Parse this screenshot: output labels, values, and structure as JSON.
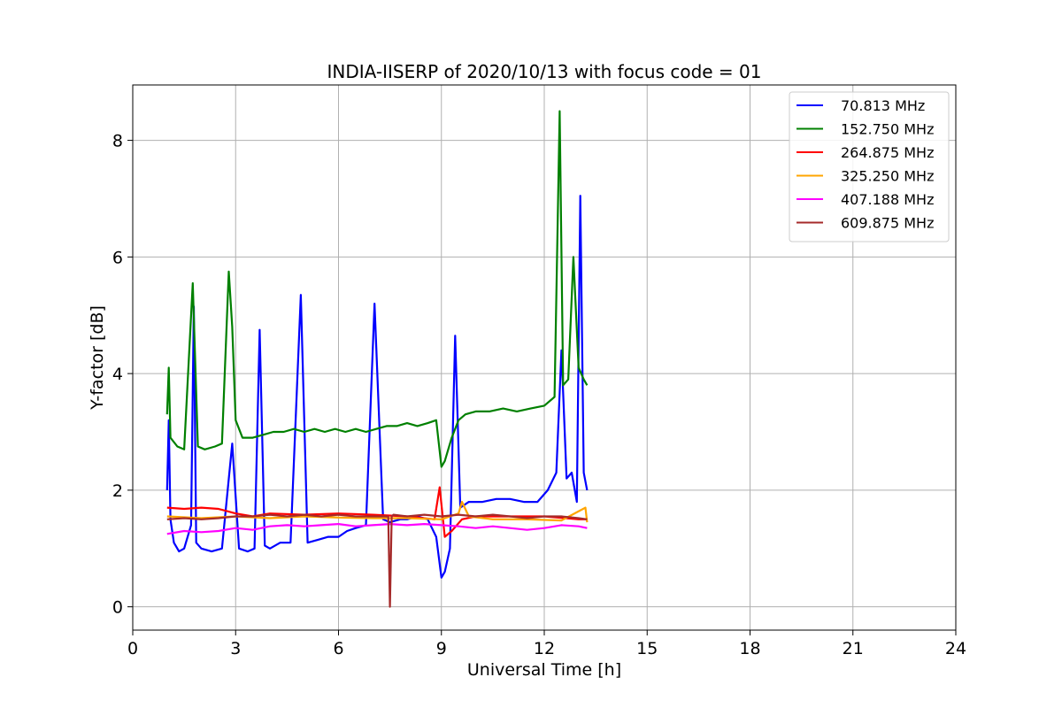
{
  "chart_data": {
    "type": "line",
    "title": "INDIA-IISERP of 2020/10/13 with focus code = 01",
    "xlabel": "Universal Time [h]",
    "ylabel": "Y-factor [dB]",
    "xlim": [
      0,
      24
    ],
    "ylim": [
      -0.4,
      8.95
    ],
    "xticks": [
      0,
      3,
      6,
      9,
      12,
      15,
      18,
      21,
      24
    ],
    "yticks": [
      0,
      2,
      4,
      6,
      8
    ],
    "grid": true,
    "legend_position": "top-right",
    "series": [
      {
        "name": " 70.813 MHz",
        "color": "#0000ff",
        "x": [
          1.0,
          1.05,
          1.1,
          1.2,
          1.35,
          1.5,
          1.7,
          1.78,
          1.85,
          2.0,
          2.3,
          2.6,
          2.9,
          3.1,
          3.35,
          3.55,
          3.7,
          3.85,
          4.0,
          4.3,
          4.6,
          4.9,
          5.1,
          5.4,
          5.7,
          6.0,
          6.25,
          6.5,
          6.8,
          7.05,
          7.3,
          7.5,
          7.8,
          8.0,
          8.3,
          8.6,
          8.85,
          9.0,
          9.1,
          9.25,
          9.4,
          9.55,
          9.8,
          10.2,
          10.6,
          11.0,
          11.4,
          11.8,
          12.1,
          12.35,
          12.5,
          12.65,
          12.8,
          12.95,
          13.05,
          13.15,
          13.25
        ],
        "y": [
          2.0,
          3.2,
          1.5,
          1.1,
          0.95,
          1.0,
          1.4,
          5.15,
          1.1,
          1.0,
          0.95,
          1.0,
          2.8,
          1.0,
          0.95,
          1.0,
          4.75,
          1.05,
          1.0,
          1.1,
          1.1,
          5.35,
          1.1,
          1.15,
          1.2,
          1.2,
          1.3,
          1.35,
          1.4,
          5.2,
          1.5,
          1.45,
          1.5,
          1.5,
          1.55,
          1.5,
          1.2,
          0.5,
          0.6,
          1.0,
          4.65,
          1.7,
          1.8,
          1.8,
          1.85,
          1.85,
          1.8,
          1.8,
          2.0,
          2.3,
          4.4,
          2.2,
          2.3,
          1.8,
          7.05,
          2.3,
          2.0
        ]
      },
      {
        "name": "152.750 MHz",
        "color": "#008000",
        "x": [
          1.0,
          1.05,
          1.1,
          1.3,
          1.5,
          1.75,
          1.9,
          2.1,
          2.4,
          2.6,
          2.8,
          2.9,
          3.0,
          3.2,
          3.5,
          3.8,
          4.1,
          4.4,
          4.7,
          5.0,
          5.3,
          5.6,
          5.9,
          6.2,
          6.5,
          6.8,
          7.1,
          7.4,
          7.7,
          8.0,
          8.3,
          8.6,
          8.85,
          9.0,
          9.1,
          9.3,
          9.5,
          9.7,
          10.0,
          10.4,
          10.8,
          11.2,
          11.6,
          12.0,
          12.3,
          12.45,
          12.55,
          12.7,
          12.85,
          13.0,
          13.15,
          13.25
        ],
        "y": [
          3.3,
          4.1,
          2.9,
          2.75,
          2.7,
          5.55,
          2.75,
          2.7,
          2.75,
          2.8,
          5.75,
          4.8,
          3.2,
          2.9,
          2.9,
          2.95,
          3.0,
          3.0,
          3.05,
          3.0,
          3.05,
          3.0,
          3.05,
          3.0,
          3.05,
          3.0,
          3.05,
          3.1,
          3.1,
          3.15,
          3.1,
          3.15,
          3.2,
          2.4,
          2.5,
          2.9,
          3.2,
          3.3,
          3.35,
          3.35,
          3.4,
          3.35,
          3.4,
          3.45,
          3.6,
          8.5,
          3.8,
          3.9,
          6.0,
          4.1,
          3.9,
          3.8
        ]
      },
      {
        "name": "264.875 MHz",
        "color": "#ff0000",
        "x": [
          1.0,
          1.5,
          2.0,
          2.5,
          3.0,
          3.5,
          4.0,
          5.0,
          6.0,
          7.0,
          8.0,
          8.8,
          8.95,
          9.1,
          9.3,
          9.6,
          10.0,
          11.0,
          12.0,
          13.0,
          13.25
        ],
        "y": [
          1.7,
          1.68,
          1.7,
          1.68,
          1.6,
          1.55,
          1.6,
          1.58,
          1.6,
          1.58,
          1.55,
          1.5,
          2.05,
          1.2,
          1.3,
          1.5,
          1.55,
          1.55,
          1.55,
          1.5,
          1.5
        ]
      },
      {
        "name": "325.250 MHz",
        "color": "#ffa500",
        "x": [
          1.0,
          2.0,
          3.0,
          4.0,
          5.0,
          6.0,
          7.0,
          8.0,
          9.0,
          9.5,
          9.6,
          9.8,
          10.5,
          11.5,
          12.5,
          13.2,
          13.25
        ],
        "y": [
          1.55,
          1.52,
          1.55,
          1.52,
          1.55,
          1.53,
          1.52,
          1.52,
          1.5,
          1.6,
          1.8,
          1.55,
          1.5,
          1.5,
          1.48,
          1.7,
          1.45
        ]
      },
      {
        "name": "407.188 MHz",
        "color": "#ff00ff",
        "x": [
          1.0,
          1.5,
          2.0,
          2.5,
          3.0,
          3.5,
          4.0,
          4.5,
          5.0,
          5.5,
          6.0,
          6.5,
          7.0,
          7.5,
          8.0,
          8.5,
          9.0,
          9.5,
          10.0,
          10.5,
          11.0,
          11.5,
          12.0,
          12.5,
          13.0,
          13.25
        ],
        "y": [
          1.25,
          1.3,
          1.28,
          1.3,
          1.35,
          1.32,
          1.38,
          1.4,
          1.38,
          1.4,
          1.42,
          1.38,
          1.4,
          1.42,
          1.4,
          1.42,
          1.4,
          1.38,
          1.35,
          1.38,
          1.35,
          1.32,
          1.35,
          1.4,
          1.38,
          1.35
        ]
      },
      {
        "name": "609.875 MHz",
        "color": "#a52a2a",
        "x": [
          1.0,
          1.5,
          2.0,
          2.5,
          3.0,
          3.5,
          4.0,
          4.5,
          5.0,
          5.5,
          6.0,
          6.5,
          7.0,
          7.45,
          7.5,
          7.55,
          7.6,
          8.0,
          8.5,
          9.0,
          9.5,
          10.0,
          10.5,
          11.0,
          11.5,
          12.0,
          12.5,
          13.0,
          13.25
        ],
        "y": [
          1.5,
          1.52,
          1.5,
          1.52,
          1.55,
          1.55,
          1.58,
          1.55,
          1.58,
          1.55,
          1.58,
          1.55,
          1.55,
          1.55,
          0.0,
          1.55,
          1.58,
          1.55,
          1.58,
          1.55,
          1.58,
          1.55,
          1.58,
          1.55,
          1.52,
          1.55,
          1.55,
          1.52,
          1.5
        ]
      }
    ]
  }
}
